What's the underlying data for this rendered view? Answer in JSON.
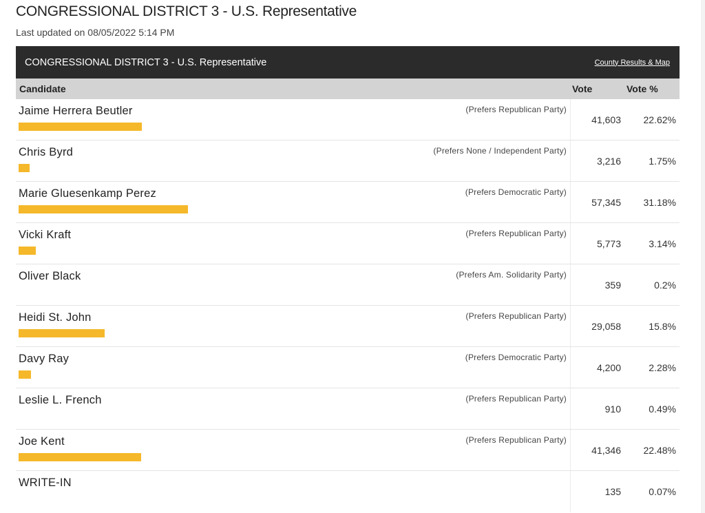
{
  "page": {
    "title": "CONGRESSIONAL DISTRICT 3 - U.S. Representative",
    "last_updated": "Last updated on 08/05/2022 5:14 PM"
  },
  "panel": {
    "race_name": "CONGRESSIONAL DISTRICT 3 - U.S. Representative",
    "map_link": "County Results & Map"
  },
  "columns": {
    "candidate": "Candidate",
    "vote": "Vote",
    "vote_pct": "Vote %"
  },
  "bar_color": "#f5b82a",
  "candidates": [
    {
      "name": "Jaime Herrera Beutler",
      "party": "(Prefers Republican Party)",
      "votes": "41,603",
      "pct": "22.62%",
      "pct_value": 22.62
    },
    {
      "name": "Chris Byrd",
      "party": "(Prefers None / Independent Party)",
      "votes": "3,216",
      "pct": "1.75%",
      "pct_value": 1.75
    },
    {
      "name": "Marie Gluesenkamp Perez",
      "party": "(Prefers Democratic Party)",
      "votes": "57,345",
      "pct": "31.18%",
      "pct_value": 31.18
    },
    {
      "name": "Vicki Kraft",
      "party": "(Prefers Republican Party)",
      "votes": "5,773",
      "pct": "3.14%",
      "pct_value": 3.14
    },
    {
      "name": "Oliver Black",
      "party": "(Prefers Am. Solidarity Party)",
      "votes": "359",
      "pct": "0.2%",
      "pct_value": 0.2
    },
    {
      "name": "Heidi St. John",
      "party": "(Prefers Republican Party)",
      "votes": "29,058",
      "pct": "15.8%",
      "pct_value": 15.8
    },
    {
      "name": "Davy Ray",
      "party": "(Prefers Democratic Party)",
      "votes": "4,200",
      "pct": "2.28%",
      "pct_value": 2.28
    },
    {
      "name": "Leslie L. French",
      "party": "(Prefers Republican Party)",
      "votes": "910",
      "pct": "0.49%",
      "pct_value": 0.49
    },
    {
      "name": "Joe Kent",
      "party": "(Prefers Republican Party)",
      "votes": "41,346",
      "pct": "22.48%",
      "pct_value": 22.48
    },
    {
      "name": "WRITE-IN",
      "party": "",
      "votes": "135",
      "pct": "0.07%",
      "pct_value": 0.07
    }
  ]
}
